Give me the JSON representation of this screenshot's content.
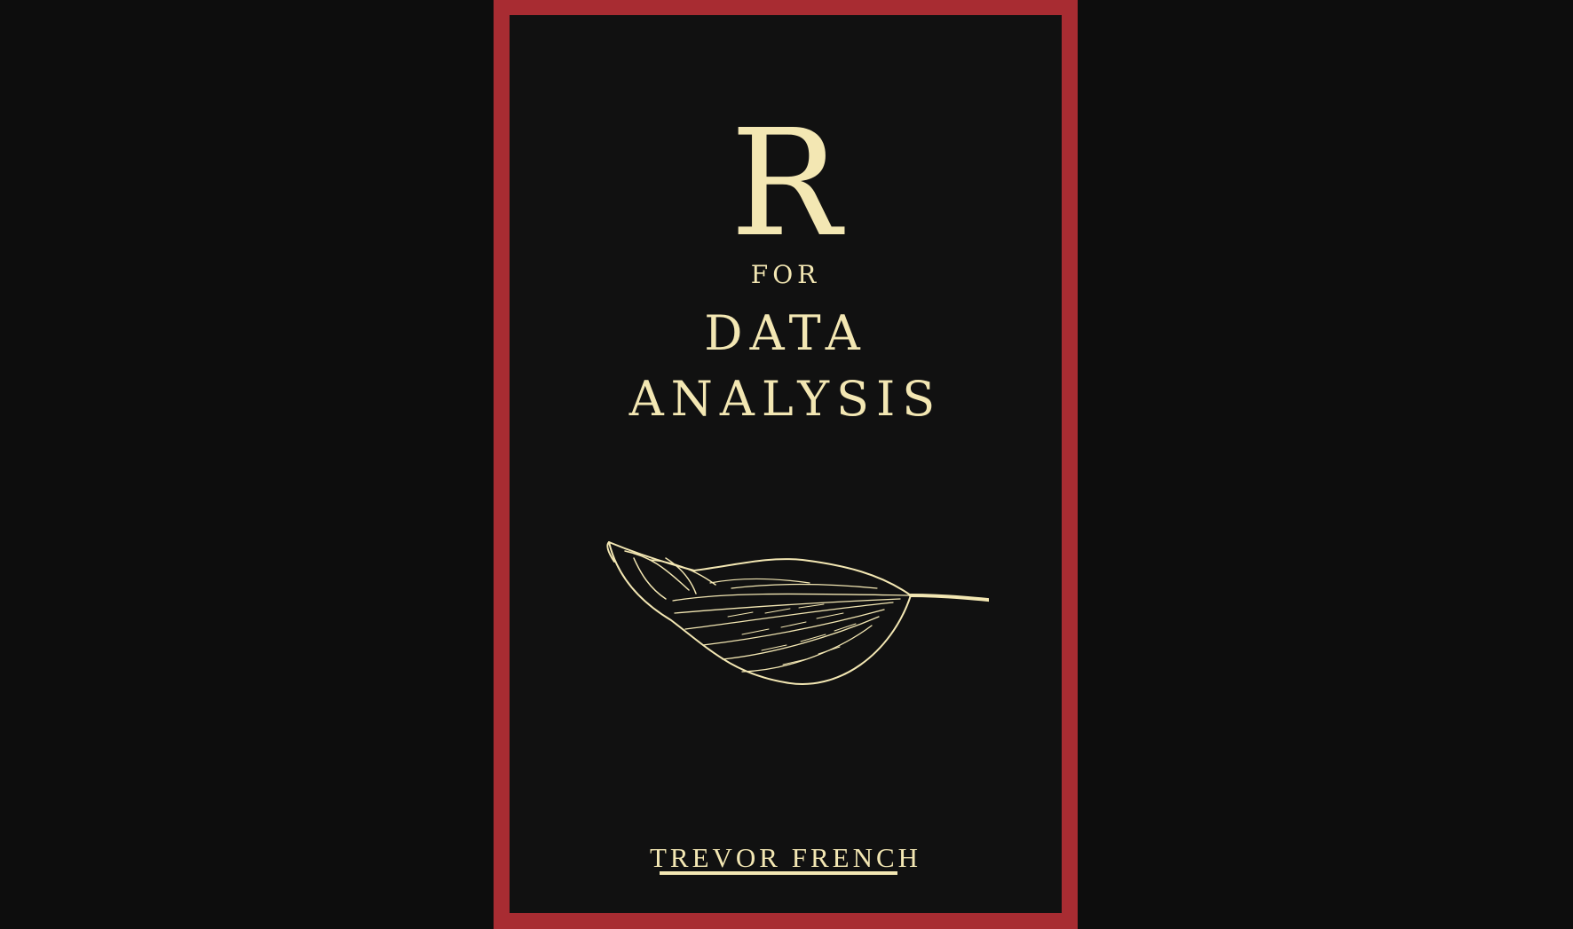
{
  "cover": {
    "title_letter": "R",
    "title_connector": "FOR",
    "title_line_1": "DATA",
    "title_line_2": "ANALYSIS",
    "author": "TREVOR FRENCH",
    "illustration_icon": "leaf-icon"
  },
  "colors": {
    "background": "#0d0d0d",
    "frame": "#a82c32",
    "cover_background": "#111111",
    "text": "#f3e7b3"
  }
}
